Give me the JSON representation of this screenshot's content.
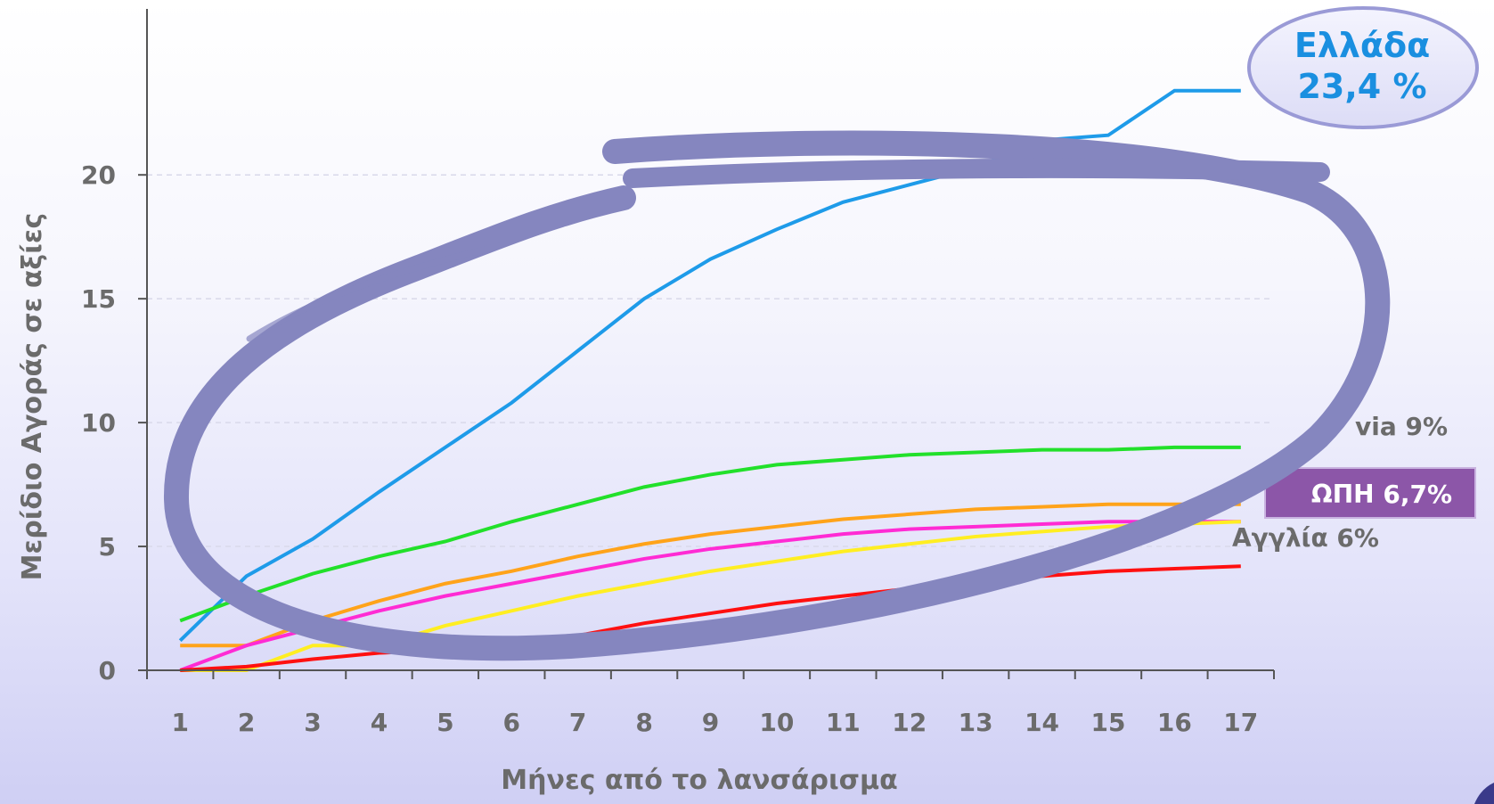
{
  "chart_data": {
    "type": "line",
    "xlabel": "Μήνες από το λανσάρισμα",
    "ylabel": "Μερίδιο Αγοράς σε αξίες",
    "x": [
      1,
      2,
      3,
      4,
      5,
      6,
      7,
      8,
      9,
      10,
      11,
      12,
      13,
      14,
      15,
      16,
      17
    ],
    "xlim": [
      0.5,
      17.5
    ],
    "ylim": [
      0,
      25
    ],
    "yticks": [
      0,
      5,
      10,
      15,
      20
    ],
    "grid": "horizontal dashed",
    "series": [
      {
        "color": "#1e9be9",
        "values": [
          1.2,
          3.8,
          5.3,
          7.2,
          9.0,
          10.8,
          12.9,
          15.0,
          16.6,
          17.8,
          18.9,
          19.6,
          20.3,
          21.4,
          21.6,
          23.4,
          23.4
        ]
      },
      {
        "color": "#22e02a",
        "values": [
          2.0,
          3.0,
          3.9,
          4.6,
          5.2,
          6.0,
          6.7,
          7.4,
          7.9,
          8.3,
          8.5,
          8.7,
          8.8,
          8.9,
          8.9,
          9.0,
          9.0
        ]
      },
      {
        "color": "#ffa31a",
        "values": [
          1.0,
          1.0,
          2.0,
          2.8,
          3.5,
          4.0,
          4.6,
          5.1,
          5.5,
          5.8,
          6.1,
          6.3,
          6.5,
          6.6,
          6.7,
          6.7,
          6.7
        ]
      },
      {
        "color": "#ff2bd4",
        "values": [
          0.0,
          1.0,
          1.7,
          2.4,
          3.0,
          3.5,
          4.0,
          4.5,
          4.9,
          5.2,
          5.5,
          5.7,
          5.8,
          5.9,
          6.0,
          6.0,
          6.0
        ]
      },
      {
        "color": "#ffee22",
        "values": [
          0.0,
          0.0,
          1.0,
          1.0,
          1.8,
          2.4,
          3.0,
          3.5,
          4.0,
          4.4,
          4.8,
          5.1,
          5.4,
          5.6,
          5.8,
          5.9,
          6.0
        ]
      },
      {
        "color": "#ff1010",
        "values": [
          0.0,
          0.15,
          0.45,
          0.7,
          0.8,
          1.0,
          1.4,
          1.9,
          2.3,
          2.7,
          3.0,
          3.3,
          3.6,
          3.8,
          4.0,
          4.1,
          4.2
        ]
      }
    ],
    "callout": {
      "line1": "Ελλάδα",
      "line2": "23,4 %"
    },
    "side_labels": {
      "germany": "via 9%",
      "europe": "ΩΠΗ 6,7%",
      "england": "Αγγλία 6%"
    },
    "colors": {
      "axis": "#555555",
      "text": "#6b6b6b",
      "circle": "#8586bf",
      "callout_fill": "#e8e8f9",
      "callout_border": "#9a9ad6",
      "europe_box": "#8c56a8"
    }
  }
}
